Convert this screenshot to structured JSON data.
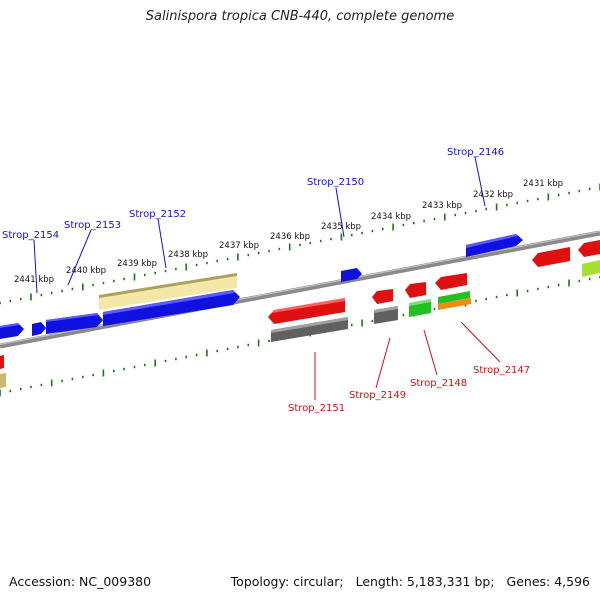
{
  "title": "Salinispora tropica CNB-440, complete genome",
  "accession_text": "Accession: NC_009380",
  "topology_text": "Topology: circular;",
  "length_text": "Length: 5,183,331 bp;",
  "genes_text": "Genes: 4,596",
  "scale_labels_upper": [
    "2441 kbp",
    "2440 kbp",
    "2439 kbp",
    "2438 kbp",
    "2437 kbp",
    "2436 kbp",
    "2435 kbp",
    "2434 kbp",
    "2433 kbp",
    "2432 kbp",
    "2431 kbp"
  ],
  "gene_labels_top": [
    "Strop_2154",
    "Strop_2153",
    "Strop_2152",
    "Strop_2150",
    "Strop_2146"
  ],
  "gene_labels_bottom": [
    "Strop_2151",
    "Strop_2149",
    "Strop_2148",
    "Strop_2147"
  ],
  "colors": {
    "backbone": "#8a8a8a",
    "forward_gene": "#1010e0",
    "reverse_gene": "#e01010",
    "green_gene": "#22c022",
    "lime_gene": "#a8e030",
    "orange_gene": "#f08a10",
    "gray_gene": "#606060",
    "pale_gene": "#f3e8a8",
    "tick": "#1a7a1a",
    "label_top_line": "#1010e0",
    "label_bottom_line": "#d01010"
  }
}
